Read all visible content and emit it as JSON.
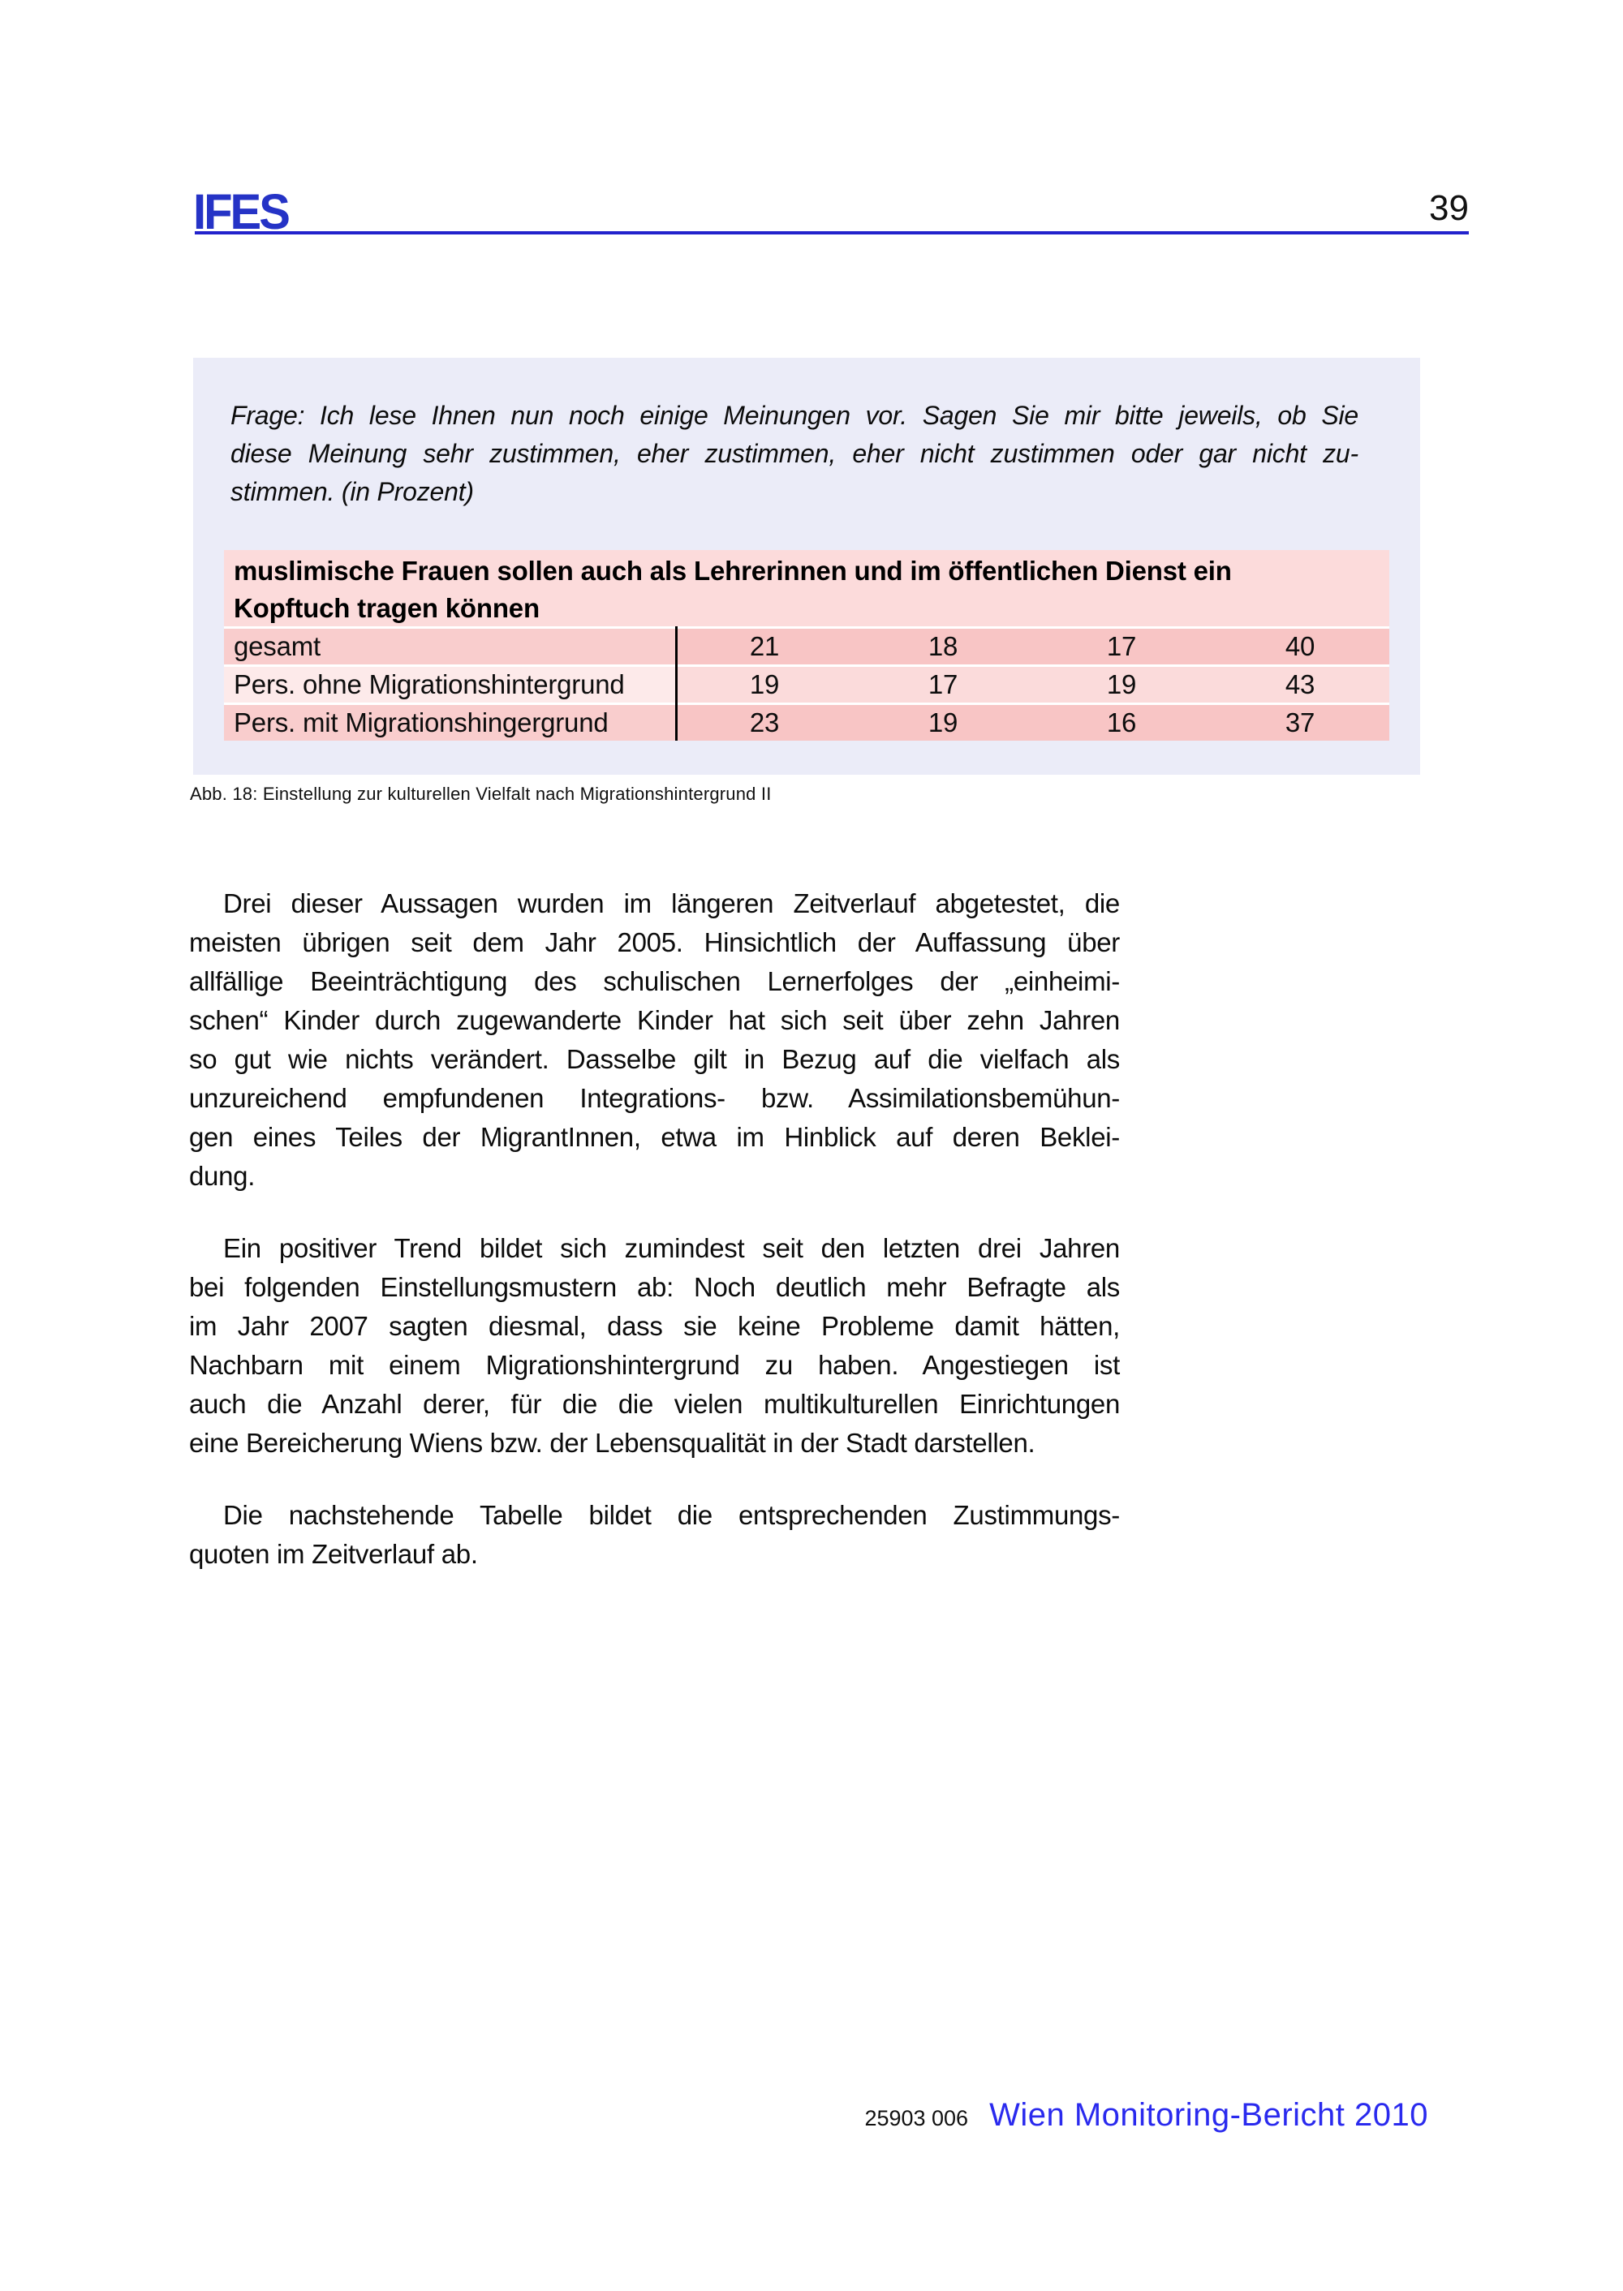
{
  "header": {
    "logo_text": "IFES",
    "page_number": "39"
  },
  "question_panel": {
    "lines": [
      "Frage: Ich lese Ihnen nun noch einige Meinungen vor. Sagen Sie mir bitte jeweils, ob Sie",
      "diese Meinung sehr zustimmen, eher zustimmen, eher nicht zustimmen oder gar nicht zu-",
      "stimmen. (in Prozent)"
    ]
  },
  "chart_data": {
    "type": "table",
    "title": "muslimische Frauen sollen auch als Lehrerinnen und im öffentlichen Dienst ein Kopftuch tragen können",
    "title_lines": [
      "muslimische Frauen sollen auch als Lehrerinnen und im öffentlichen Dienst ein",
      "Kopftuch tragen können"
    ],
    "unit": "Prozent",
    "column_meaning": [
      "sehr zustimmen",
      "eher zustimmen",
      "eher nicht zustimmen",
      "gar nicht zustimmen"
    ],
    "rows": [
      {
        "label": "gesamt",
        "values": [
          "21",
          "18",
          "17",
          "40"
        ]
      },
      {
        "label": "Pers. ohne Migrationshintergrund",
        "values": [
          "19",
          "17",
          "19",
          "43"
        ]
      },
      {
        "label": "Pers. mit Migrationshingergrund",
        "values": [
          "23",
          "19",
          "16",
          "37"
        ]
      }
    ]
  },
  "caption": "Abb. 18: Einstellung zur kulturellen Vielfalt nach Migrationshintergrund II",
  "body": {
    "paragraphs": [
      {
        "lines": [
          "Drei dieser Aussagen wurden im längeren Zeitverlauf abgetestet, die",
          "meisten übrigen seit dem Jahr 2005. Hinsichtlich der Auffassung über",
          "allfällige Beeinträchtigung des schulischen Lernerfolges der „einheimi-",
          "schen“ Kinder durch zugewanderte Kinder hat sich seit über zehn Jahren",
          "so gut wie nichts verändert. Dasselbe gilt in Bezug auf die vielfach als",
          "unzureichend empfundenen Integrations- bzw. Assimilationsbemühun-",
          "gen eines Teiles der MigrantInnen, etwa im Hinblick auf deren Beklei-",
          "dung."
        ]
      },
      {
        "lines": [
          "Ein positiver Trend bildet sich zumindest seit den letzten drei Jahren",
          "bei folgenden Einstellungsmustern ab: Noch deutlich mehr Befragte als",
          "im Jahr 2007 sagten diesmal, dass sie keine Probleme damit hätten,",
          "Nachbarn mit einem Migrationshintergrund zu haben. Angestiegen ist",
          "auch die Anzahl derer, für die die vielen multikulturellen Einrichtungen",
          "eine Bereicherung Wiens bzw. der Lebensqualität in der Stadt darstellen."
        ]
      },
      {
        "lines": [
          "Die nachstehende Tabelle bildet die entsprechenden Zustimmungs-",
          "quoten im Zeitverlauf ab."
        ]
      }
    ]
  },
  "footer": {
    "code": "25903 006",
    "title": "Wien Monitoring-Bericht 2010"
  },
  "colors": {
    "accent_blue": "#2222cc",
    "logo_blue": "#2533c6",
    "footer_blue": "#2a2aee",
    "panel_lavender": "#ebecf8",
    "table_header_pink": "#fcdbdb",
    "row_dark_pink": "#f8c5c5",
    "row_light_pink": "#fbdbdb"
  }
}
